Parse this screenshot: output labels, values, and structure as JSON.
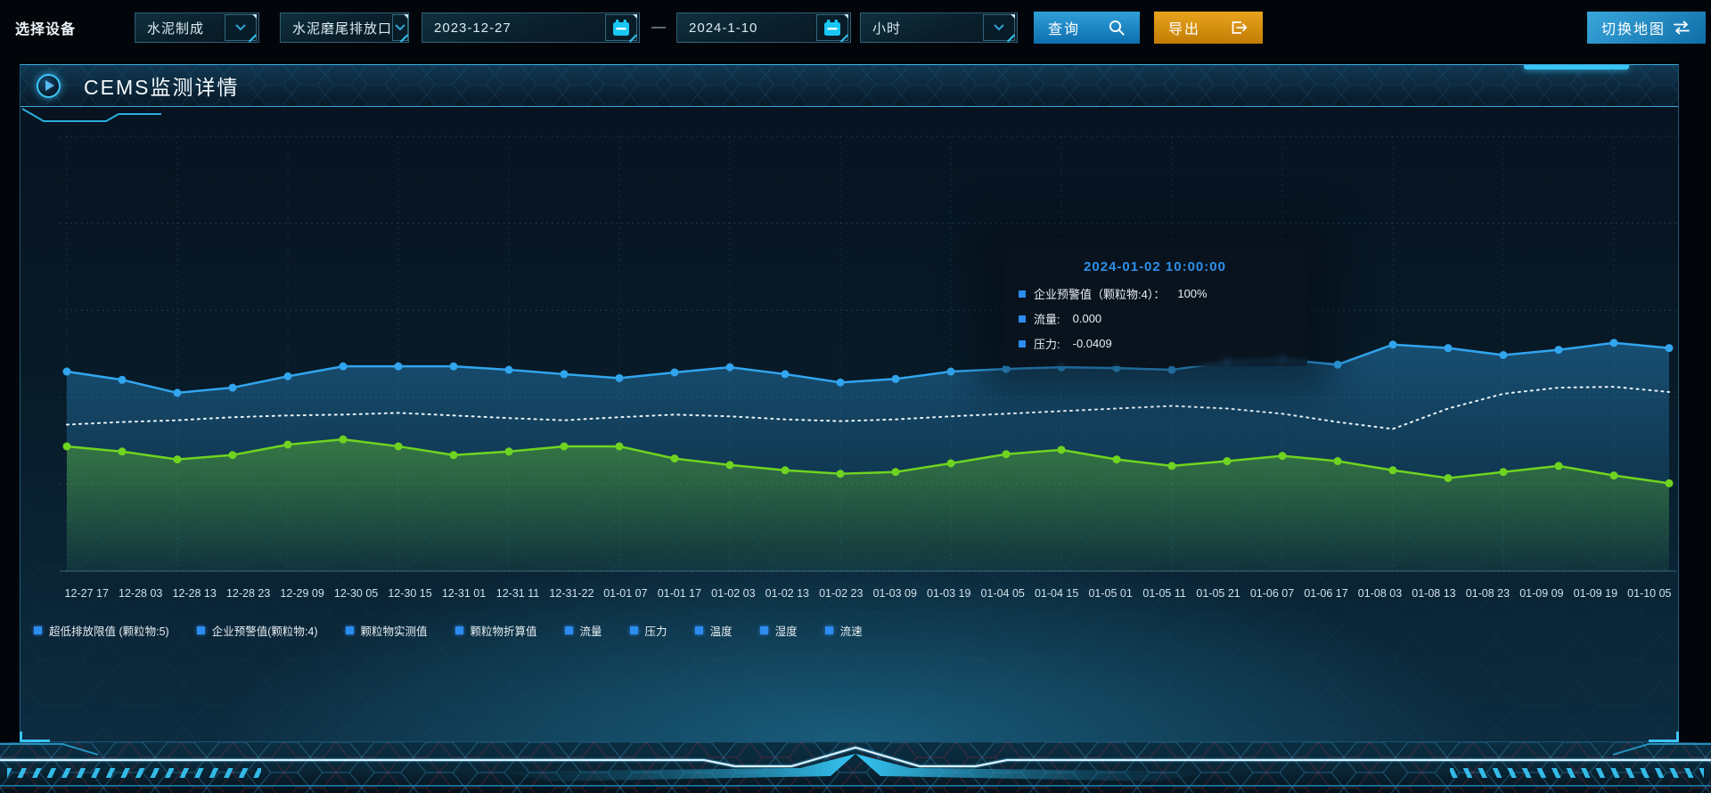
{
  "toolbar": {
    "device_label": "选择设备",
    "selects": [
      {
        "value": "水泥制成"
      },
      {
        "value": "水泥磨尾排放口"
      },
      {
        "value": "小时"
      }
    ],
    "date_start": "2023-12-27",
    "date_separator": "—",
    "date_end": "2024-1-10",
    "query_label": "查询",
    "export_label": "导出",
    "switch_map_label": "切换地图"
  },
  "panel": {
    "title": "CEMS监测详情"
  },
  "tooltip": {
    "title": "2024-01-02 10:00:00",
    "rows": [
      {
        "label": "企业预警值（颗粒物:4）：",
        "value": "100%"
      },
      {
        "label": "流量:",
        "value": "0.000"
      },
      {
        "label": "压力:",
        "value": "-0.0409"
      }
    ]
  },
  "legend": {
    "items": [
      "超低排放限值 (颗粒物:5)",
      "企业预警值(颗粒物:4)",
      "颗粒物实测值",
      "颗粒物折算值",
      "流量",
      "压力",
      "温度",
      "湿度",
      "流速"
    ]
  },
  "colors": {
    "accent_cyan": "#37c4f5",
    "query_button": "#1581c5",
    "export_button": "#d9940f",
    "legend_marker": "#2d8cf0",
    "tooltip_title": "#2f8fe8",
    "axis_label": "#cfe0ea"
  },
  "chart_data": {
    "type": "line",
    "title": "",
    "xlabel": "",
    "ylabel": "",
    "ylim": [
      0,
      100
    ],
    "grid": "dashed",
    "y_axis_labels": "none",
    "legend_position": "bottom-left",
    "note": "values are percent of plot height read from pixels; no numeric y-axis shown in UI",
    "categories": [
      "12-27 17",
      "12-28 03",
      "12-28 13",
      "12-28 23",
      "12-29 09",
      "12-30 05",
      "12-30 15",
      "12-31 01",
      "12-31 11",
      "12-31-22",
      "01-01 07",
      "01-01 17",
      "01-02 03",
      "01-02 13",
      "01-02 23",
      "01-03 09",
      "01-03 19",
      "01-04 05",
      "01-04 15",
      "01-05 01",
      "01-05 11",
      "01-05 21",
      "01-06 07",
      "01-06 17",
      "01-08 03",
      "01-08 13",
      "01-08 23",
      "01-09 09",
      "01-09 19",
      "01-10 05"
    ],
    "series": [
      {
        "name": "企业预警值(颗粒物:4)",
        "color": "#31a5ee",
        "style": "solid",
        "markers": true,
        "area": true,
        "values": [
          45.9,
          44.0,
          41.0,
          42.2,
          44.8,
          47.1,
          47.1,
          47.1,
          46.3,
          45.3,
          44.4,
          45.7,
          46.9,
          45.3,
          43.4,
          44.2,
          45.9,
          46.5,
          46.9,
          46.7,
          46.3,
          48.1,
          48.7,
          47.5,
          52.1,
          51.3,
          49.7,
          50.9,
          52.5,
          51.3
        ]
      },
      {
        "name": "流量",
        "color": "#e9f5fa",
        "style": "dotted",
        "markers": false,
        "area": false,
        "values": [
          33.7,
          34.3,
          34.7,
          35.4,
          35.8,
          36.0,
          36.4,
          35.8,
          35.2,
          34.7,
          35.4,
          36.0,
          35.6,
          34.9,
          34.5,
          34.9,
          35.6,
          36.2,
          36.8,
          37.4,
          38.0,
          37.4,
          36.2,
          34.3,
          32.7,
          37.4,
          40.8,
          42.2,
          42.4,
          41.2
        ]
      },
      {
        "name": "压力",
        "color": "#6fd420",
        "style": "solid",
        "markers": true,
        "area": true,
        "values": [
          28.7,
          27.5,
          25.7,
          26.7,
          29.1,
          30.3,
          28.7,
          26.7,
          27.5,
          28.7,
          28.7,
          25.9,
          24.4,
          23.2,
          22.4,
          22.8,
          24.8,
          26.9,
          27.9,
          25.7,
          24.2,
          25.3,
          26.5,
          25.3,
          23.2,
          21.4,
          22.8,
          24.2,
          22.0,
          20.2
        ]
      }
    ]
  }
}
